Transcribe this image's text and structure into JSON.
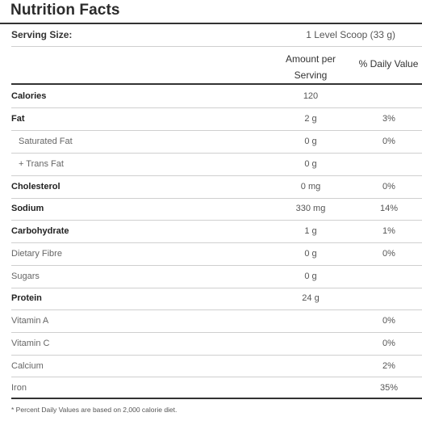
{
  "title": "Nutrition Facts",
  "serving": {
    "label": "Serving Size:",
    "value": "1 Level Scoop (33 g)"
  },
  "headers": {
    "amount_line1": "Amount per",
    "amount_line2": "Serving",
    "daily_value": "% Daily Value"
  },
  "rows": [
    {
      "name": "Calories",
      "amount": "120",
      "dv": ""
    },
    {
      "name": "Fat",
      "amount": "2 g",
      "dv": "3%"
    },
    {
      "name": "Saturated Fat",
      "amount": "0 g",
      "dv": "0%"
    },
    {
      "name": "+ Trans Fat",
      "amount": "0 g",
      "dv": ""
    },
    {
      "name": "Cholesterol",
      "amount": "0 mg",
      "dv": "0%"
    },
    {
      "name": "Sodium",
      "amount": "330 mg",
      "dv": "14%"
    },
    {
      "name": "Carbohydrate",
      "amount": "1 g",
      "dv": "1%"
    },
    {
      "name": "Dietary Fibre",
      "amount": "0 g",
      "dv": "0%"
    },
    {
      "name": "Sugars",
      "amount": "0 g",
      "dv": ""
    },
    {
      "name": "Protein",
      "amount": "24 g",
      "dv": ""
    },
    {
      "name": "Vitamin A",
      "amount": "",
      "dv": "0%"
    },
    {
      "name": "Vitamin C",
      "amount": "",
      "dv": "0%"
    },
    {
      "name": "Calcium",
      "amount": "",
      "dv": "2%"
    },
    {
      "name": "Iron",
      "amount": "",
      "dv": "35%"
    }
  ],
  "footnote": "* Percent Daily Values are based on 2,000 calorie diet."
}
